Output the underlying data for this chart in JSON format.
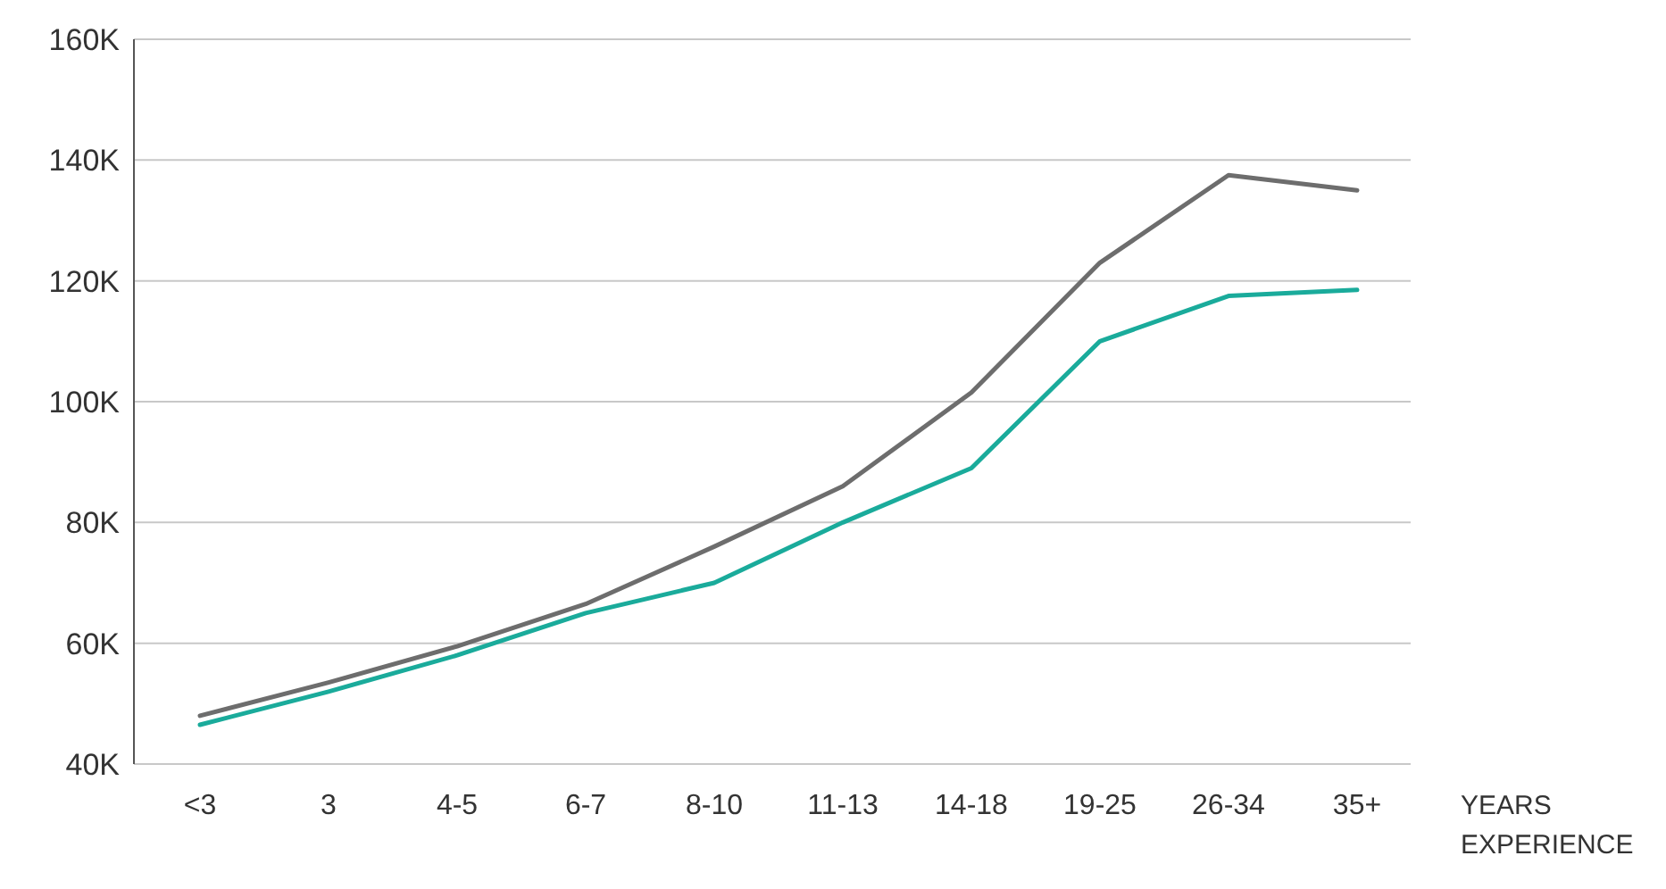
{
  "chart_data": {
    "type": "line",
    "categories": [
      "<3",
      "3",
      "4-5",
      "6-7",
      "8-10",
      "11-13",
      "14-18",
      "19-25",
      "26-34",
      "35+"
    ],
    "xlabel": "YEARS EXPERIENCE",
    "series": [
      {
        "color": "#6d6d6d",
        "values": [
          48000,
          53500,
          59500,
          66500,
          76000,
          86000,
          101500,
          123000,
          137500,
          135000
        ]
      },
      {
        "color": "#1aab9b",
        "values": [
          46500,
          52000,
          58000,
          65000,
          70000,
          80000,
          89000,
          110000,
          117500,
          118500
        ]
      }
    ],
    "ylim": [
      40000,
      160000
    ],
    "yticks": [
      {
        "value": 40000,
        "label": "40K"
      },
      {
        "value": 60000,
        "label": "60K"
      },
      {
        "value": 80000,
        "label": "80K"
      },
      {
        "value": 100000,
        "label": "100K"
      },
      {
        "value": 120000,
        "label": "120K"
      },
      {
        "value": 140000,
        "label": "140K"
      },
      {
        "value": 160000,
        "label": "160K"
      }
    ],
    "grid": "y",
    "marker": "none",
    "line_style": "solid"
  }
}
